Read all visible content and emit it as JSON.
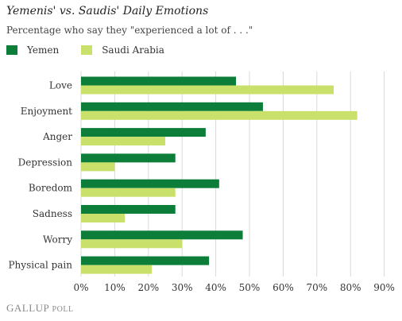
{
  "title": "Yemenis' vs. Saudis' Daily Emotions",
  "subtitle": "Percentage who say they \"experienced a lot of . . .\"",
  "footer": {
    "brand": "GALLUP",
    "suffix": "POLL"
  },
  "colors": {
    "yemen": "#0d7d3a",
    "saudi": "#c9e06b",
    "grid": "#d9d9d9"
  },
  "chart_data": {
    "type": "bar",
    "orientation": "horizontal",
    "categories": [
      "Love",
      "Enjoyment",
      "Anger",
      "Depression",
      "Boredom",
      "Sadness",
      "Worry",
      "Physical pain"
    ],
    "series": [
      {
        "name": "Yemen",
        "values": [
          46,
          54,
          37,
          28,
          41,
          28,
          48,
          38
        ]
      },
      {
        "name": "Saudi Arabia",
        "values": [
          75,
          82,
          25,
          10,
          28,
          13,
          30,
          21
        ]
      }
    ],
    "xlim": [
      0,
      90
    ],
    "xticks": [
      "0%",
      "10%",
      "20%",
      "30%",
      "40%",
      "50%",
      "60%",
      "70%",
      "80%",
      "90%"
    ],
    "grid": true,
    "legend_position": "top-left"
  }
}
